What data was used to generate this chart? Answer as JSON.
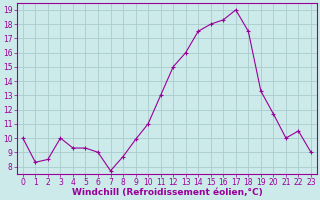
{
  "x": [
    0,
    1,
    2,
    3,
    4,
    5,
    6,
    7,
    8,
    9,
    10,
    11,
    12,
    13,
    14,
    15,
    16,
    17,
    18,
    19,
    20,
    21,
    22,
    23
  ],
  "y": [
    10.0,
    8.3,
    8.5,
    10.0,
    9.3,
    9.3,
    9.0,
    7.7,
    8.7,
    9.9,
    11.0,
    13.0,
    15.0,
    16.0,
    17.5,
    18.0,
    18.3,
    19.0,
    17.5,
    13.3,
    11.7,
    10.0,
    10.5,
    9.0
  ],
  "xlabel": "Windchill (Refroidissement éolien,°C)",
  "line_color": "#990099",
  "bg_color": "#cceaea",
  "grid_color": "#aacccc",
  "ylim_min": 7.5,
  "ylim_max": 19.5,
  "xlim_min": -0.5,
  "xlim_max": 23.5,
  "yticks": [
    8,
    9,
    10,
    11,
    12,
    13,
    14,
    15,
    16,
    17,
    18,
    19
  ],
  "xticks": [
    0,
    1,
    2,
    3,
    4,
    5,
    6,
    7,
    8,
    9,
    10,
    11,
    12,
    13,
    14,
    15,
    16,
    17,
    18,
    19,
    20,
    21,
    22,
    23
  ],
  "xlabel_fontsize": 6.5,
  "tick_fontsize": 5.5
}
